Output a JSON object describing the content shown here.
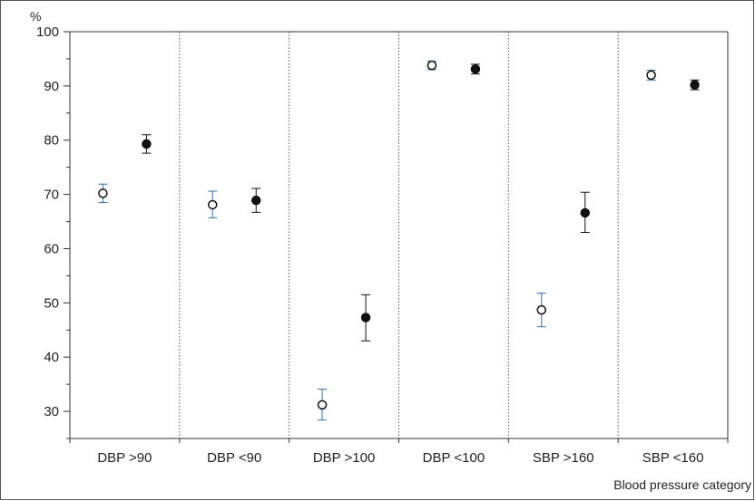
{
  "chart_data": {
    "type": "scatter",
    "ylabel": "%",
    "xlabel": "Blood pressure category",
    "ylim": [
      25,
      100
    ],
    "y_ticks_major": [
      30,
      40,
      50,
      60,
      70,
      80,
      90,
      100
    ],
    "categories": [
      "DBP >90",
      "DBP <90",
      "DBP >100",
      "DBP <100",
      "SBP >160",
      "SBP <160"
    ],
    "series": [
      {
        "marker": "open-circle",
        "error_bar_color": "#2f6fa8",
        "values": [
          70.2,
          68.1,
          31.2,
          93.8,
          48.7,
          92.0
        ],
        "lower": [
          68.5,
          65.7,
          28.4,
          93.0,
          45.6,
          91.1
        ],
        "upper": [
          71.9,
          70.6,
          34.1,
          94.6,
          51.8,
          92.9
        ]
      },
      {
        "marker": "filled-circle",
        "error_bar_color": "#111111",
        "values": [
          79.3,
          68.9,
          47.3,
          93.1,
          66.6,
          90.2
        ],
        "lower": [
          77.6,
          66.7,
          43.0,
          92.2,
          63.0,
          89.3
        ],
        "upper": [
          81.0,
          71.1,
          51.5,
          94.0,
          70.4,
          91.1
        ]
      }
    ],
    "grid": false,
    "category_separators": "dotted-vertical"
  }
}
